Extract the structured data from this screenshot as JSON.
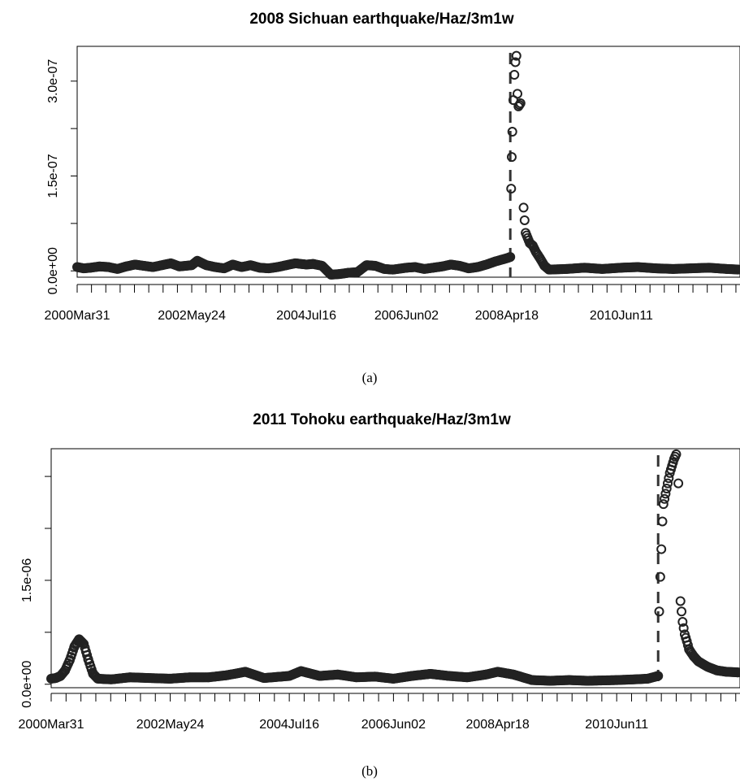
{
  "chart_data": [
    {
      "type": "scatter",
      "title": "2008 Sichuan earthquake/Haz/3m1w",
      "caption": "(a)",
      "xlabel": "",
      "ylabel": "",
      "x_range": [
        "2000-03-31",
        "2012-08-31"
      ],
      "ylim": [
        -1e-08,
        3.55e-07
      ],
      "x_tick_labels": [
        "2000Mar31",
        "2002May24",
        "2004Jul16",
        "2006Jun02",
        "2008Apr18",
        "2010Jun11"
      ],
      "y_tick_labels": [
        "0.0e+00",
        "1.5e-07",
        "3.0e-07"
      ],
      "y_ticks": [
        0,
        7.5e-08,
        1.5e-07,
        2.25e-07,
        3e-07
      ],
      "event_line": {
        "date": "2008-05-12",
        "style": "dashed"
      },
      "series": [
        {
          "points": [
            [
              "2000-03-31",
              6e-09
            ],
            [
              "2000-05-15",
              4e-09
            ],
            [
              "2000-07-01",
              5e-09
            ],
            [
              "2000-09-01",
              7e-09
            ],
            [
              "2000-11-01",
              6e-09
            ],
            [
              "2001-01-01",
              3e-09
            ],
            [
              "2001-03-01",
              7e-09
            ],
            [
              "2001-05-01",
              1e-08
            ],
            [
              "2001-07-01",
              8e-09
            ],
            [
              "2001-09-01",
              6e-09
            ],
            [
              "2001-11-01",
              9e-09
            ],
            [
              "2002-01-01",
              1.2e-08
            ],
            [
              "2002-03-01",
              7e-09
            ],
            [
              "2002-05-24",
              9e-09
            ],
            [
              "2002-07-01",
              1.6e-08
            ],
            [
              "2002-09-01",
              9e-09
            ],
            [
              "2002-11-01",
              6e-09
            ],
            [
              "2003-01-01",
              4e-09
            ],
            [
              "2003-03-01",
              1e-08
            ],
            [
              "2003-05-01",
              6e-09
            ],
            [
              "2003-07-01",
              9e-09
            ],
            [
              "2003-09-01",
              5e-09
            ],
            [
              "2003-11-01",
              4e-09
            ],
            [
              "2004-01-01",
              6e-09
            ],
            [
              "2004-03-01",
              9e-09
            ],
            [
              "2004-05-01",
              1.2e-08
            ],
            [
              "2004-07-16",
              1e-08
            ],
            [
              "2004-09-01",
              1.1e-08
            ],
            [
              "2004-11-01",
              8e-09
            ],
            [
              "2005-01-01",
              -6e-09
            ],
            [
              "2005-03-01",
              -5e-09
            ],
            [
              "2005-05-01",
              -3e-09
            ],
            [
              "2005-07-01",
              -2e-09
            ],
            [
              "2005-09-01",
              9e-09
            ],
            [
              "2005-11-01",
              8e-09
            ],
            [
              "2006-01-01",
              3e-09
            ],
            [
              "2006-03-01",
              2e-09
            ],
            [
              "2006-06-02",
              5e-09
            ],
            [
              "2006-08-01",
              6e-09
            ],
            [
              "2006-10-01",
              3e-09
            ],
            [
              "2006-12-01",
              5e-09
            ],
            [
              "2007-02-01",
              7e-09
            ],
            [
              "2007-04-01",
              1e-08
            ],
            [
              "2007-06-01",
              8e-09
            ],
            [
              "2007-08-01",
              4e-09
            ],
            [
              "2007-10-01",
              6e-09
            ],
            [
              "2007-12-01",
              1e-08
            ],
            [
              "2008-02-01",
              1.5e-08
            ],
            [
              "2008-04-18",
              2e-08
            ],
            [
              "2008-05-12",
              2.2e-08
            ],
            [
              "2008-05-18",
              1.3e-07
            ],
            [
              "2008-05-22",
              1.8e-07
            ],
            [
              "2008-05-26",
              2.2e-07
            ],
            [
              "2008-06-02",
              2.7e-07
            ],
            [
              "2008-06-09",
              3.1e-07
            ],
            [
              "2008-06-16",
              3.3e-07
            ],
            [
              "2008-06-23",
              3.4e-07
            ],
            [
              "2008-06-30",
              2.8e-07
            ],
            [
              "2008-07-07",
              2.6e-07
            ],
            [
              "2008-07-21",
              2.65e-07
            ],
            [
              "2008-08-11",
              1e-07
            ],
            [
              "2008-08-25",
              6e-08
            ],
            [
              "2008-09-08",
              5.2e-08
            ],
            [
              "2008-09-22",
              4.4e-08
            ],
            [
              "2008-10-13",
              4e-08
            ],
            [
              "2008-11-03",
              3e-08
            ],
            [
              "2008-12-01",
              2e-08
            ],
            [
              "2009-01-01",
              8e-09
            ],
            [
              "2009-02-01",
              2e-09
            ],
            [
              "2009-06-01",
              3e-09
            ],
            [
              "2009-10-01",
              5e-09
            ],
            [
              "2010-02-01",
              3e-09
            ],
            [
              "2010-06-11",
              5e-09
            ],
            [
              "2010-10-01",
              6e-09
            ],
            [
              "2011-02-01",
              4e-09
            ],
            [
              "2011-06-01",
              3e-09
            ],
            [
              "2011-10-01",
              4e-09
            ],
            [
              "2012-02-01",
              5e-09
            ],
            [
              "2012-06-01",
              3e-09
            ],
            [
              "2012-08-31",
              2e-09
            ]
          ]
        }
      ]
    },
    {
      "type": "scatter",
      "title": "2011 Tohoku earthquake/Haz/3m1w",
      "caption": "(b)",
      "xlabel": "",
      "ylabel": "",
      "x_range": [
        "2000-03-31",
        "2012-08-31"
      ],
      "ylim": [
        -5e-08,
        3.4e-06
      ],
      "x_tick_labels": [
        "2000Mar31",
        "2002May24",
        "2004Jul16",
        "2006Jun02",
        "2008Apr18",
        "2010Jun11"
      ],
      "y_tick_labels": [
        "0.0e+00",
        "1.5e-06"
      ],
      "y_ticks": [
        0,
        7.5e-07,
        1.5e-06,
        2.25e-06,
        3e-06
      ],
      "event_line": {
        "date": "2011-03-11",
        "style": "dashed"
      },
      "series": [
        {
          "points": [
            [
              "2000-03-31",
              8e-08
            ],
            [
              "2000-05-01",
              9e-08
            ],
            [
              "2000-06-01",
              1.2e-07
            ],
            [
              "2000-07-01",
              2e-07
            ],
            [
              "2000-08-01",
              3.5e-07
            ],
            [
              "2000-09-01",
              5.5e-07
            ],
            [
              "2000-10-01",
              6.5e-07
            ],
            [
              "2000-11-01",
              5.8e-07
            ],
            [
              "2000-12-01",
              3.5e-07
            ],
            [
              "2001-01-01",
              1.5e-07
            ],
            [
              "2001-02-01",
              8e-08
            ],
            [
              "2001-05-01",
              7e-08
            ],
            [
              "2001-09-01",
              1e-07
            ],
            [
              "2002-01-01",
              9e-08
            ],
            [
              "2002-05-24",
              8e-08
            ],
            [
              "2002-10-01",
              1e-07
            ],
            [
              "2003-02-01",
              1e-07
            ],
            [
              "2003-06-01",
              1.3e-07
            ],
            [
              "2003-10-01",
              1.8e-07
            ],
            [
              "2004-02-01",
              9e-08
            ],
            [
              "2004-07-16",
              1.2e-07
            ],
            [
              "2004-10-01",
              1.9e-07
            ],
            [
              "2005-02-01",
              1.2e-07
            ],
            [
              "2005-06-01",
              1.4e-07
            ],
            [
              "2005-10-01",
              1e-07
            ],
            [
              "2006-02-01",
              1.1e-07
            ],
            [
              "2006-06-02",
              8e-08
            ],
            [
              "2006-10-01",
              1.2e-07
            ],
            [
              "2007-02-01",
              1.5e-07
            ],
            [
              "2007-06-01",
              1.2e-07
            ],
            [
              "2007-10-01",
              1e-07
            ],
            [
              "2008-02-01",
              1.4e-07
            ],
            [
              "2008-04-18",
              1.8e-07
            ],
            [
              "2008-08-01",
              1.4e-07
            ],
            [
              "2008-12-01",
              6e-08
            ],
            [
              "2009-04-01",
              5e-08
            ],
            [
              "2009-08-01",
              6e-08
            ],
            [
              "2009-12-01",
              5e-08
            ],
            [
              "2010-06-11",
              6e-08
            ],
            [
              "2010-10-01",
              7e-08
            ],
            [
              "2011-01-01",
              8e-08
            ],
            [
              "2011-03-11",
              1.2e-07
            ],
            [
              "2011-03-18",
              1.05e-06
            ],
            [
              "2011-03-25",
              1.55e-06
            ],
            [
              "2011-04-01",
              1.95e-06
            ],
            [
              "2011-04-08",
              2.35e-06
            ],
            [
              "2011-04-15",
              2.6e-06
            ],
            [
              "2011-04-29",
              2.75e-06
            ],
            [
              "2011-05-13",
              2.9e-06
            ],
            [
              "2011-05-27",
              3.05e-06
            ],
            [
              "2011-06-10",
              3.15e-06
            ],
            [
              "2011-06-24",
              3.25e-06
            ],
            [
              "2011-07-08",
              3.32e-06
            ],
            [
              "2011-07-22",
              2.9e-06
            ],
            [
              "2011-08-05",
              1.2e-06
            ],
            [
              "2011-08-19",
              9e-07
            ],
            [
              "2011-09-02",
              7.2e-07
            ],
            [
              "2011-09-16",
              6.2e-07
            ],
            [
              "2011-10-01",
              5e-07
            ],
            [
              "2011-11-01",
              4e-07
            ],
            [
              "2011-12-01",
              3.3e-07
            ],
            [
              "2012-02-01",
              2.5e-07
            ],
            [
              "2012-04-01",
              2e-07
            ],
            [
              "2012-06-01",
              1.8e-07
            ],
            [
              "2012-08-31",
              1.7e-07
            ]
          ]
        }
      ]
    }
  ]
}
